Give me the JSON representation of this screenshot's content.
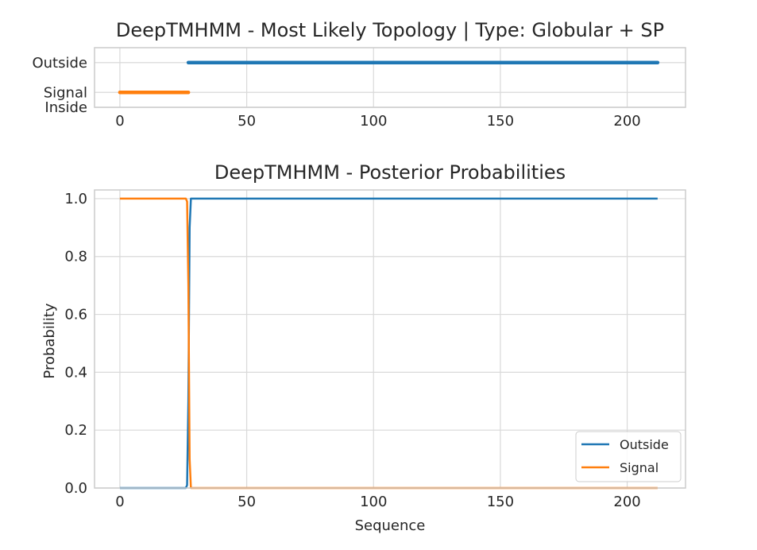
{
  "chart_data": [
    {
      "type": "line",
      "title": "DeepTMHMM - Most Likely Topology | Type: Globular + SP",
      "xlabel": "",
      "ylabel": "",
      "xlim": [
        -10,
        223
      ],
      "ylim": [
        -0.5,
        1.5
      ],
      "x_ticks": [
        0,
        50,
        100,
        150,
        200
      ],
      "y_ticks": [
        {
          "value": 1,
          "label": "Outside"
        },
        {
          "value": 0,
          "label": "Signal"
        },
        {
          "value": -0.5,
          "label": "Inside"
        }
      ],
      "grid": true,
      "series": [
        {
          "name": "Outside",
          "color": "#1f77b4",
          "x": [
            27,
            212
          ],
          "y": [
            1,
            1
          ]
        },
        {
          "name": "Signal",
          "color": "#ff7f0e",
          "x": [
            0,
            27
          ],
          "y": [
            0,
            0
          ]
        }
      ]
    },
    {
      "type": "line",
      "title": "DeepTMHMM - Posterior Probabilities",
      "xlabel": "Sequence",
      "ylabel": "Probability",
      "xlim": [
        -10,
        223
      ],
      "ylim": [
        0,
        1.03
      ],
      "x_ticks": [
        0,
        50,
        100,
        150,
        200
      ],
      "y_ticks": [
        {
          "value": 0.0,
          "label": "0.0"
        },
        {
          "value": 0.2,
          "label": "0.2"
        },
        {
          "value": 0.4,
          "label": "0.4"
        },
        {
          "value": 0.6,
          "label": "0.6"
        },
        {
          "value": 0.8,
          "label": "0.8"
        },
        {
          "value": 1.0,
          "label": "1.0"
        }
      ],
      "grid": true,
      "legend_position": "lower-right",
      "series": [
        {
          "name": "Outside",
          "color": "#1f77b4",
          "x": [
            0,
            26,
            26.5,
            27,
            27.5,
            28,
            212
          ],
          "y": [
            0.0,
            0.0,
            0.01,
            0.3,
            0.9,
            1.0,
            1.0
          ]
        },
        {
          "name": "Signal",
          "color": "#ff7f0e",
          "x": [
            0,
            26,
            26.5,
            27,
            27.5,
            28,
            212
          ],
          "y": [
            1.0,
            1.0,
            0.99,
            0.7,
            0.1,
            0.0,
            0.0
          ]
        }
      ]
    }
  ]
}
